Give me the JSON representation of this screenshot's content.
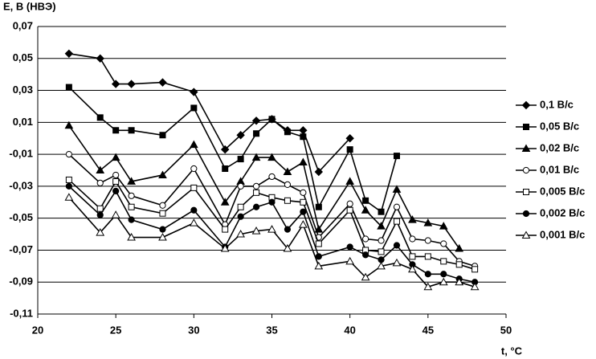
{
  "chart_data": {
    "type": "line",
    "y_label": "Е, В (НВЭ)",
    "x_label": "t, °C",
    "x": [
      22,
      24,
      25,
      26,
      28,
      30,
      32,
      33,
      34,
      35,
      36,
      37,
      38,
      40,
      41,
      42,
      43,
      44,
      45,
      46,
      47,
      48
    ],
    "xlim": [
      20,
      50
    ],
    "xticks": [
      20,
      25,
      30,
      35,
      40,
      45,
      50
    ],
    "ylim": [
      -0.11,
      0.07
    ],
    "yticks": [
      {
        "value": 0.07,
        "label": "0,07"
      },
      {
        "value": 0.05,
        "label": "0,05"
      },
      {
        "value": 0.03,
        "label": "0,03"
      },
      {
        "value": 0.01,
        "label": "0,01"
      },
      {
        "value": -0.01,
        "label": "-0,01"
      },
      {
        "value": -0.03,
        "label": "-0,03"
      },
      {
        "value": -0.05,
        "label": "-0,05"
      },
      {
        "value": -0.07,
        "label": "-0,07"
      },
      {
        "value": -0.09,
        "label": "-0,09"
      },
      {
        "value": -0.11,
        "label": "-0,11"
      }
    ],
    "grid": true,
    "legend": "right",
    "series": [
      {
        "name": "0,1 В/с",
        "color": "#000000",
        "marker": "diamond",
        "marker_fill": true,
        "values": [
          0.053,
          0.05,
          0.034,
          0.034,
          0.035,
          0.029,
          -0.007,
          0.002,
          0.011,
          0.012,
          0.005,
          0.005,
          -0.021,
          0.0,
          null,
          null,
          null,
          null,
          null,
          null,
          null,
          null
        ]
      },
      {
        "name": "0,05 В/с",
        "color": "#000000",
        "marker": "square",
        "marker_fill": true,
        "values": [
          0.032,
          0.013,
          0.005,
          0.005,
          0.002,
          0.019,
          -0.019,
          -0.013,
          0.003,
          0.012,
          0.004,
          0.001,
          -0.043,
          -0.007,
          -0.039,
          -0.046,
          -0.011,
          null,
          null,
          null,
          null,
          null
        ]
      },
      {
        "name": "0,02 В/с",
        "color": "#000000",
        "marker": "triangle",
        "marker_fill": true,
        "values": [
          0.008,
          -0.02,
          -0.012,
          -0.027,
          -0.023,
          -0.004,
          -0.04,
          -0.027,
          -0.012,
          -0.012,
          -0.021,
          -0.015,
          -0.057,
          -0.027,
          -0.045,
          -0.055,
          -0.032,
          -0.051,
          -0.053,
          -0.055,
          -0.069,
          null
        ]
      },
      {
        "name": "0,01 В/с",
        "color": "#000000",
        "marker": "circle",
        "marker_fill": false,
        "values": [
          -0.01,
          -0.028,
          -0.023,
          -0.036,
          -0.042,
          -0.019,
          -0.054,
          -0.03,
          -0.03,
          -0.024,
          -0.029,
          -0.034,
          -0.062,
          -0.041,
          -0.063,
          -0.064,
          -0.043,
          -0.063,
          -0.064,
          -0.066,
          -0.077,
          -0.08
        ]
      },
      {
        "name": "0,005 В/с",
        "color": "#000000",
        "marker": "square",
        "marker_fill": false,
        "values": [
          -0.026,
          -0.044,
          -0.027,
          -0.043,
          -0.047,
          -0.031,
          -0.057,
          -0.043,
          -0.034,
          -0.037,
          -0.039,
          -0.04,
          -0.066,
          -0.045,
          -0.07,
          -0.071,
          -0.052,
          -0.074,
          -0.074,
          -0.077,
          -0.079,
          -0.082
        ]
      },
      {
        "name": "0,002 В/с",
        "color": "#000000",
        "marker": "circle",
        "marker_fill": true,
        "values": [
          -0.03,
          -0.048,
          -0.033,
          -0.051,
          -0.057,
          -0.045,
          -0.068,
          -0.049,
          -0.043,
          -0.04,
          -0.057,
          -0.046,
          -0.074,
          -0.068,
          -0.073,
          -0.076,
          -0.067,
          -0.079,
          -0.085,
          -0.085,
          -0.088,
          -0.09
        ]
      },
      {
        "name": "0,001 В/с",
        "color": "#000000",
        "marker": "triangle",
        "marker_fill": false,
        "values": [
          -0.037,
          -0.059,
          -0.048,
          -0.062,
          -0.062,
          -0.053,
          -0.069,
          -0.06,
          -0.058,
          -0.057,
          -0.069,
          -0.054,
          -0.08,
          -0.077,
          -0.087,
          -0.08,
          -0.078,
          -0.082,
          -0.093,
          -0.09,
          -0.09,
          -0.093
        ]
      }
    ]
  }
}
